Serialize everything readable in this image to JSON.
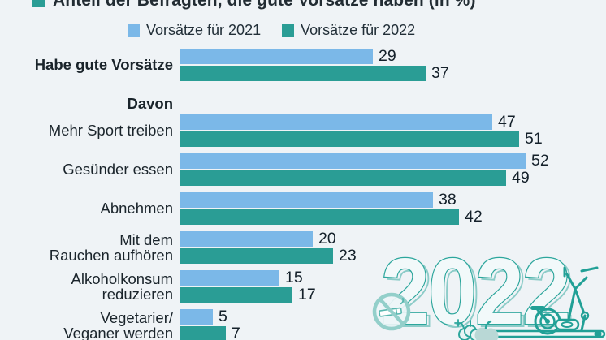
{
  "page": {
    "background": "#eff3f6"
  },
  "header": {
    "title": "Anteil der Befragten, die gute Vorsätze haben (in %)",
    "marker_color": "#2a9d95"
  },
  "legend": {
    "items": [
      {
        "label": "Vorsätze für 2021",
        "color": "#7bb8e8"
      },
      {
        "label": "Vorsätze für 2022",
        "color": "#2a9d95"
      }
    ]
  },
  "chart_data": {
    "type": "bar",
    "orientation": "horizontal",
    "title": "Anteil der Befragten, die gute Vorsätze haben (in %)",
    "unit": "%",
    "xlim": [
      0,
      55
    ],
    "grid": false,
    "legend_position": "top",
    "section_heading": "Davon",
    "section_heading_after_row": 0,
    "categories": [
      "Habe gute Vorsätze",
      "Mehr Sport treiben",
      "Gesünder essen",
      "Abnehmen",
      "Mit dem Rauchen aufhören",
      "Alkoholkonsum reduzieren",
      "Vegetarier/ Veganer werden"
    ],
    "series": [
      {
        "name": "Vorsätze für 2021",
        "color": "#7bb8e8",
        "values": [
          29,
          47,
          52,
          38,
          20,
          15,
          5
        ]
      },
      {
        "name": "Vorsätze für 2022",
        "color": "#2a9d95",
        "values": [
          37,
          51,
          49,
          42,
          23,
          17,
          7
        ]
      }
    ],
    "rows": [
      {
        "label_lines": [
          "Habe gute Vorsätze"
        ],
        "bold": true,
        "values": [
          29,
          37
        ]
      },
      {
        "label_lines": [
          "Mehr Sport treiben"
        ],
        "bold": false,
        "values": [
          47,
          51
        ]
      },
      {
        "label_lines": [
          "Gesünder essen"
        ],
        "bold": false,
        "values": [
          52,
          49
        ]
      },
      {
        "label_lines": [
          "Abnehmen"
        ],
        "bold": false,
        "values": [
          38,
          42
        ]
      },
      {
        "label_lines": [
          "Mit dem",
          "Rauchen aufhören"
        ],
        "bold": false,
        "values": [
          20,
          23
        ]
      },
      {
        "label_lines": [
          "Alkoholkonsum",
          "reduzieren"
        ],
        "bold": false,
        "values": [
          15,
          17
        ]
      },
      {
        "label_lines": [
          "Vegetarier/",
          "Veganer werden"
        ],
        "bold": false,
        "values": [
          5,
          7
        ]
      }
    ]
  },
  "decoration": {
    "year_text": "2022",
    "accent_color": "#2ca69c",
    "light_color": "#93cfca",
    "fill_color": "#f2f9fa",
    "icons": [
      "no-smoking-icon",
      "kale-icon",
      "apple-icon",
      "sparkle-icon",
      "elliptical-trainer-icon"
    ]
  }
}
